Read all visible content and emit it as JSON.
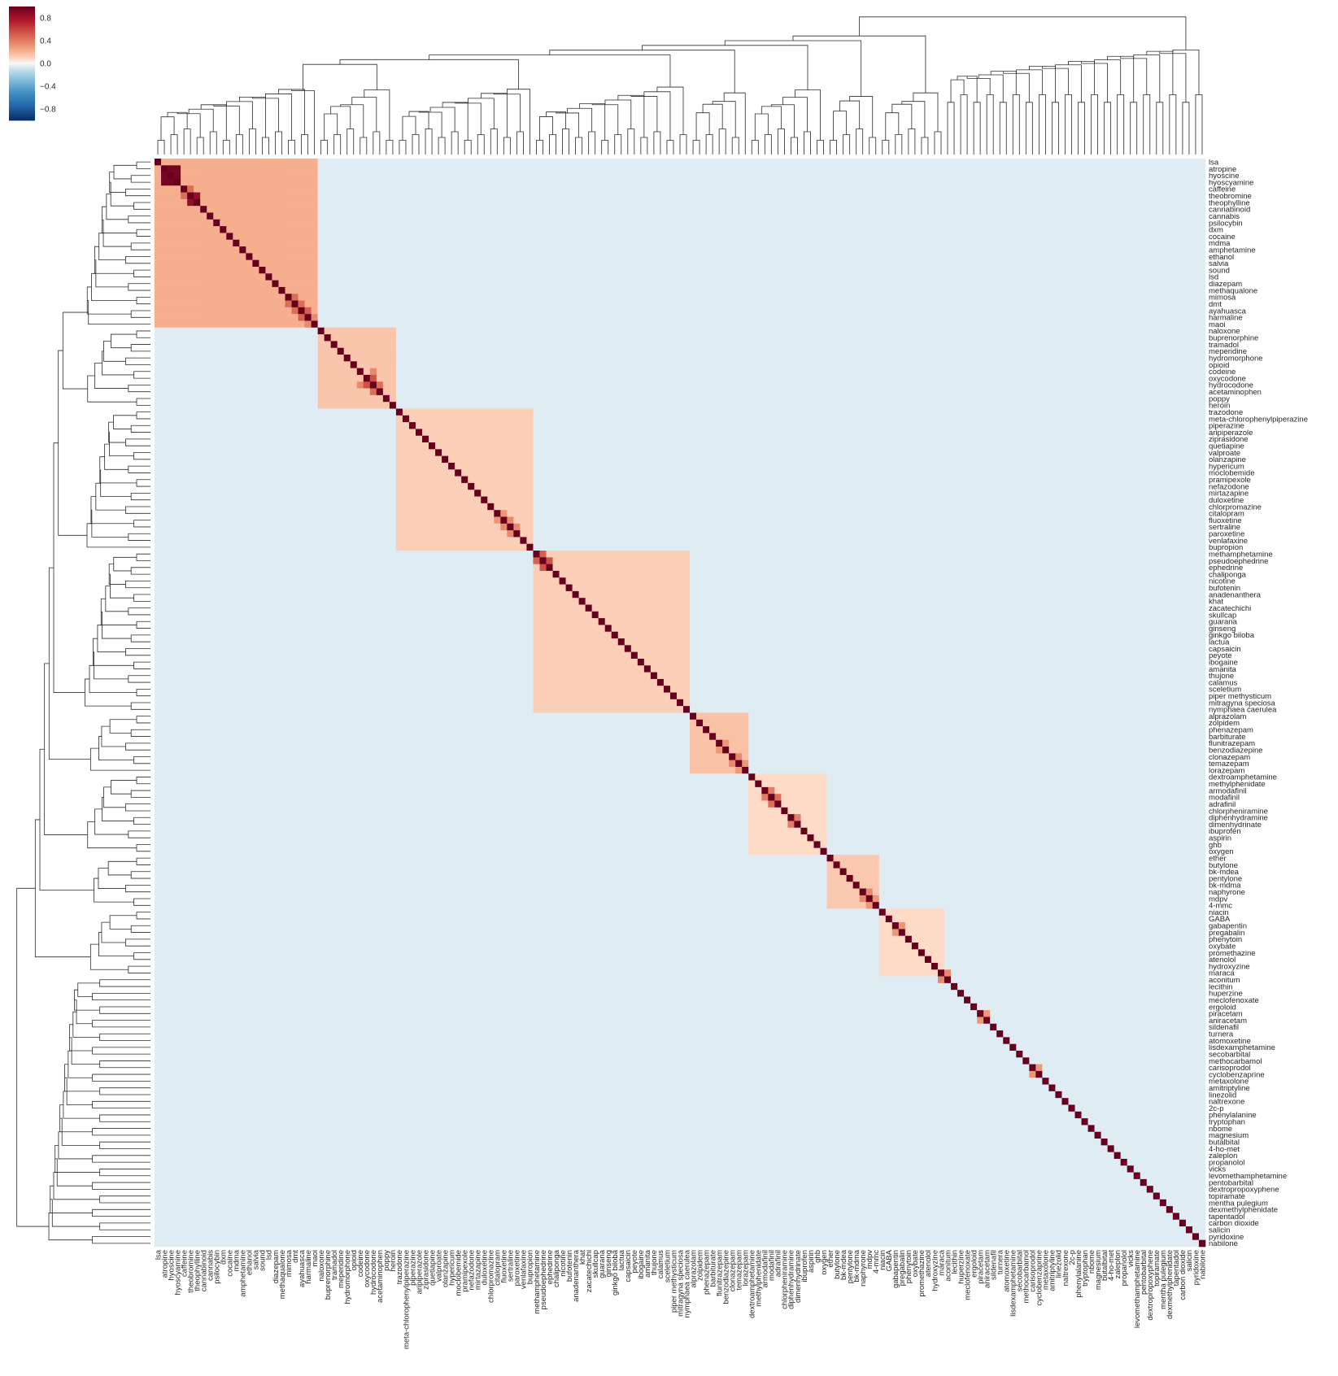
{
  "chart_data": {
    "type": "heatmap",
    "title": "",
    "xlabel": "",
    "ylabel": "",
    "labels": [
      "lsa",
      "atropine",
      "hyoscine",
      "hyoscyamine",
      "caffeine",
      "theobromine",
      "theophylline",
      "cannabinoid",
      "cannabis",
      "psilocybin",
      "dxm",
      "cocaine",
      "mdma",
      "amphetamine",
      "ethanol",
      "salvia",
      "sound",
      "lsd",
      "diazepam",
      "methaqualone",
      "mimosa",
      "dmt",
      "ayahuasca",
      "harmaline",
      "maoi",
      "naloxone",
      "buprenorphine",
      "tramadol",
      "meperidine",
      "hydromorphone",
      "opioid",
      "codeine",
      "oxycodone",
      "hydrocodone",
      "acetaminophen",
      "poppy",
      "heroin",
      "trazodone",
      "meta-chlorophenylpiperazine",
      "piperazine",
      "aripiperazole",
      "ziprasidone",
      "quetiapine",
      "valproate",
      "olanzapine",
      "hypericum",
      "moclobemide",
      "pramipexole",
      "nefazodone",
      "mirtazapine",
      "duloxetine",
      "chlorpromazine",
      "citalopram",
      "fluoxetine",
      "sertraline",
      "paroxetine",
      "venlafaxine",
      "bupropion",
      "methamphetamine",
      "pseudoephedrine",
      "ephedrine",
      "chaliponga",
      "nicotine",
      "bufotenin",
      "anadenanthera",
      "khat",
      "zacatechichi",
      "skullcap",
      "guarana",
      "ginseng",
      "ginkgo biloba",
      "lactua",
      "capsaicin",
      "peyote",
      "ibogaine",
      "amanita",
      "thujone",
      "calamus",
      "sceletium",
      "piper methysticum",
      "mitragyna speciosa",
      "nymphaea caerulea",
      "alprazolam",
      "zolpidem",
      "phenazepam",
      "barbiturate",
      "flunitrazepam",
      "benzodiazepine",
      "clonazepam",
      "temazepam",
      "lorazepam",
      "dextroamphetamine",
      "methylphenidate",
      "armodafinil",
      "modafinil",
      "adrafinil",
      "chlorpheniramine",
      "diphenhydramine",
      "dimenhydrinate",
      "ibuprofen",
      "aspirin",
      "ghb",
      "oxygen",
      "ether",
      "butylone",
      "bk-mdea",
      "pentylone",
      "bk-mdma",
      "naphyrone",
      "mdpv",
      "4-mmc",
      "niacin",
      "GABA",
      "gabapentin",
      "pregabalin",
      "phenytoin",
      "oxybate",
      "promethazine",
      "atenolol",
      "hydroxyzine",
      "maraca",
      "aconitum",
      "lecithin",
      "huperzine",
      "meclofenoxate",
      "ergoloid",
      "piracetam",
      "aniracetam",
      "sildenafil",
      "turnera",
      "atomoxetine",
      "lisdexamphetamine",
      "secobarbital",
      "methocarbamol",
      "carisoprodol",
      "cyclobenzaprine",
      "metaxolone",
      "amitriptyline",
      "linezolid",
      "naltrexone",
      "2c-p",
      "phenylalanine",
      "tryptophan",
      "nbome",
      "magnesium",
      "butalbital",
      "4-ho-met",
      "zaleplon",
      "propanolol",
      "vicks",
      "levomethamphetamine",
      "pentobarbital",
      "dextropropoxyphene",
      "topiramate",
      "mentha pulegium",
      "dexmethylphenidate",
      "tapentadol",
      "carbon dioxide",
      "salicin",
      "pyridoxine",
      "nabilone"
    ],
    "blocks": [
      {
        "start": 0,
        "end": 25,
        "value": 0.22
      },
      {
        "start": 25,
        "end": 37,
        "value": 0.15
      },
      {
        "start": 37,
        "end": 58,
        "value": 0.12
      },
      {
        "start": 58,
        "end": 82,
        "value": 0.12
      },
      {
        "start": 82,
        "end": 91,
        "value": 0.16
      },
      {
        "start": 91,
        "end": 103,
        "value": 0.08
      },
      {
        "start": 103,
        "end": 111,
        "value": 0.14
      },
      {
        "start": 111,
        "end": 121,
        "value": 0.08
      }
    ],
    "strong_pairs": [
      {
        "a": "atropine",
        "b": "hyoscine",
        "value": 0.95
      },
      {
        "a": "atropine",
        "b": "hyoscyamine",
        "value": 0.95
      },
      {
        "a": "hyoscine",
        "b": "hyoscyamine",
        "value": 0.95
      },
      {
        "a": "theobromine",
        "b": "theophylline",
        "value": 0.85
      },
      {
        "a": "caffeine",
        "b": "theobromine",
        "value": 0.45
      },
      {
        "a": "mimosa",
        "b": "dmt",
        "value": 0.45
      },
      {
        "a": "dmt",
        "b": "ayahuasca",
        "value": 0.45
      },
      {
        "a": "ayahuasca",
        "b": "harmaline",
        "value": 0.5
      },
      {
        "a": "harmaline",
        "b": "maoi",
        "value": 0.35
      },
      {
        "a": "oxycodone",
        "b": "hydrocodone",
        "value": 0.55
      },
      {
        "a": "hydrocodone",
        "b": "acetaminophen",
        "value": 0.45
      },
      {
        "a": "codeine",
        "b": "hydrocodone",
        "value": 0.35
      },
      {
        "a": "fluoxetine",
        "b": "sertraline",
        "value": 0.35
      },
      {
        "a": "sertraline",
        "b": "paroxetine",
        "value": 0.35
      },
      {
        "a": "citalopram",
        "b": "fluoxetine",
        "value": 0.3
      },
      {
        "a": "methamphetamine",
        "b": "pseudoephedrine",
        "value": 0.5
      },
      {
        "a": "pseudoephedrine",
        "b": "ephedrine",
        "value": 0.55
      },
      {
        "a": "flunitrazepam",
        "b": "benzodiazepine",
        "value": 0.3
      },
      {
        "a": "clonazepam",
        "b": "temazepam",
        "value": 0.35
      },
      {
        "a": "temazepam",
        "b": "lorazepam",
        "value": 0.3
      },
      {
        "a": "modafinil",
        "b": "adrafinil",
        "value": 0.45
      },
      {
        "a": "armodafinil",
        "b": "modafinil",
        "value": 0.4
      },
      {
        "a": "diphenhydramine",
        "b": "dimenhydrinate",
        "value": 0.4
      },
      {
        "a": "naphyrone",
        "b": "mdpv",
        "value": 0.35
      },
      {
        "a": "mdpv",
        "b": "4-mmc",
        "value": 0.3
      },
      {
        "a": "gabapentin",
        "b": "pregabalin",
        "value": 0.3
      },
      {
        "a": "piracetam",
        "b": "aniracetam",
        "value": 0.3
      },
      {
        "a": "carisoprodol",
        "b": "cyclobenzaprine",
        "value": 0.3
      },
      {
        "a": "maraca",
        "b": "aconitum",
        "value": 0.35
      }
    ],
    "background_value": -0.05,
    "colorbar": {
      "ticks": [
        0.8,
        0.4,
        0.0,
        -0.4,
        -0.8
      ],
      "tick_labels": [
        "0.8",
        "0.4",
        "0.0",
        "−0.4",
        "−0.8"
      ],
      "vmin": -1,
      "vmax": 1
    },
    "colormap": "RdBu_r",
    "dendrograms": [
      "top",
      "left"
    ],
    "grid": false
  }
}
